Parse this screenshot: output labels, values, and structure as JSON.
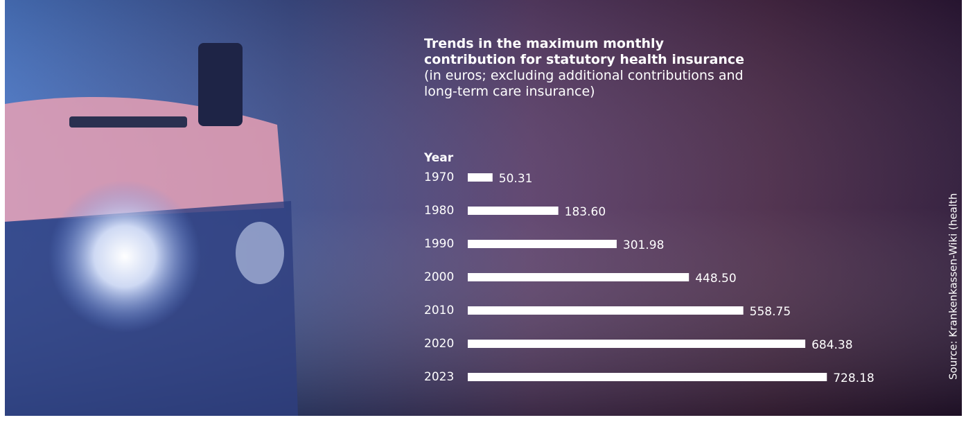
{
  "chart_data": {
    "type": "bar",
    "title": "Trends in the maximum monthly contribution for statutory health insurance",
    "subtitle": "(in euros; excluding additional contributions and long-term care insurance)",
    "y_label": "Year",
    "categories": [
      "1970",
      "1980",
      "1990",
      "2000",
      "2010",
      "2020",
      "2023"
    ],
    "values": [
      50.31,
      183.6,
      301.98,
      448.5,
      558.75,
      684.38,
      728.18
    ],
    "value_labels": [
      "50.31",
      "183.60",
      "301.98",
      "448.50",
      "558.75",
      "684.38",
      "728.18"
    ],
    "color": "#ffffff",
    "source": "Source: Krankenkassen-Wiki (health"
  }
}
